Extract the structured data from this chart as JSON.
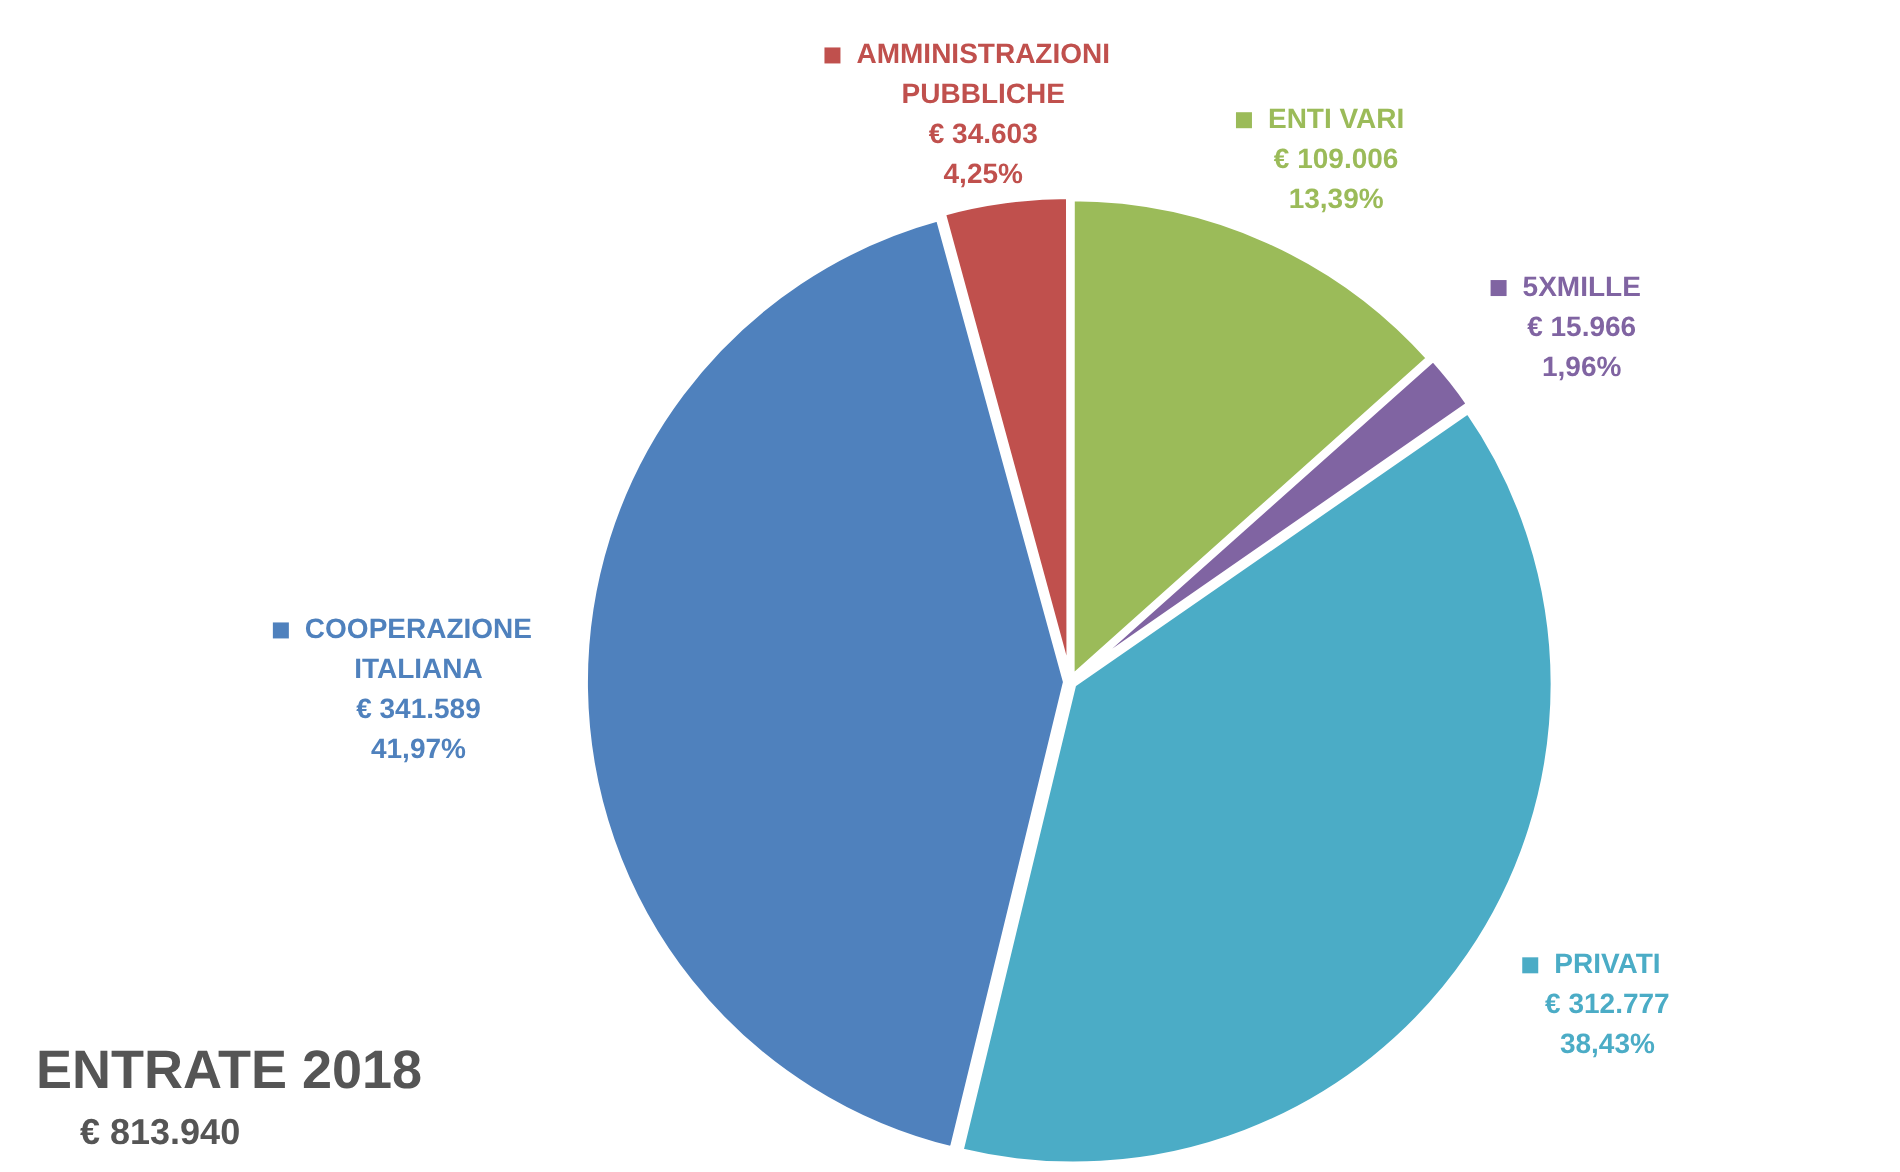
{
  "chart_data": {
    "type": "pie",
    "title": "ENTRATE 2018",
    "subtitle": "€ 813.940",
    "categories": [
      "ENTI VARI",
      "5XMILLE",
      "PRIVATI",
      "COOPERAZIONE ITALIANA",
      "AMMINISTRAZIONI PUBBLICHE"
    ],
    "values": [
      109006,
      15966,
      312777,
      341589,
      34603
    ],
    "colors": [
      "#9bbb59",
      "#8064a2",
      "#4bacc6",
      "#4f81bd",
      "#c0504d"
    ],
    "value_labels": [
      "€ 109.006\n13,39%",
      "€ 15.966\n1,96%",
      "€ 312.777\n38,43%",
      "€ 341.589\n41,97%",
      "€ 34.603\n4,25%"
    ],
    "legend": "top left"
  }
}
